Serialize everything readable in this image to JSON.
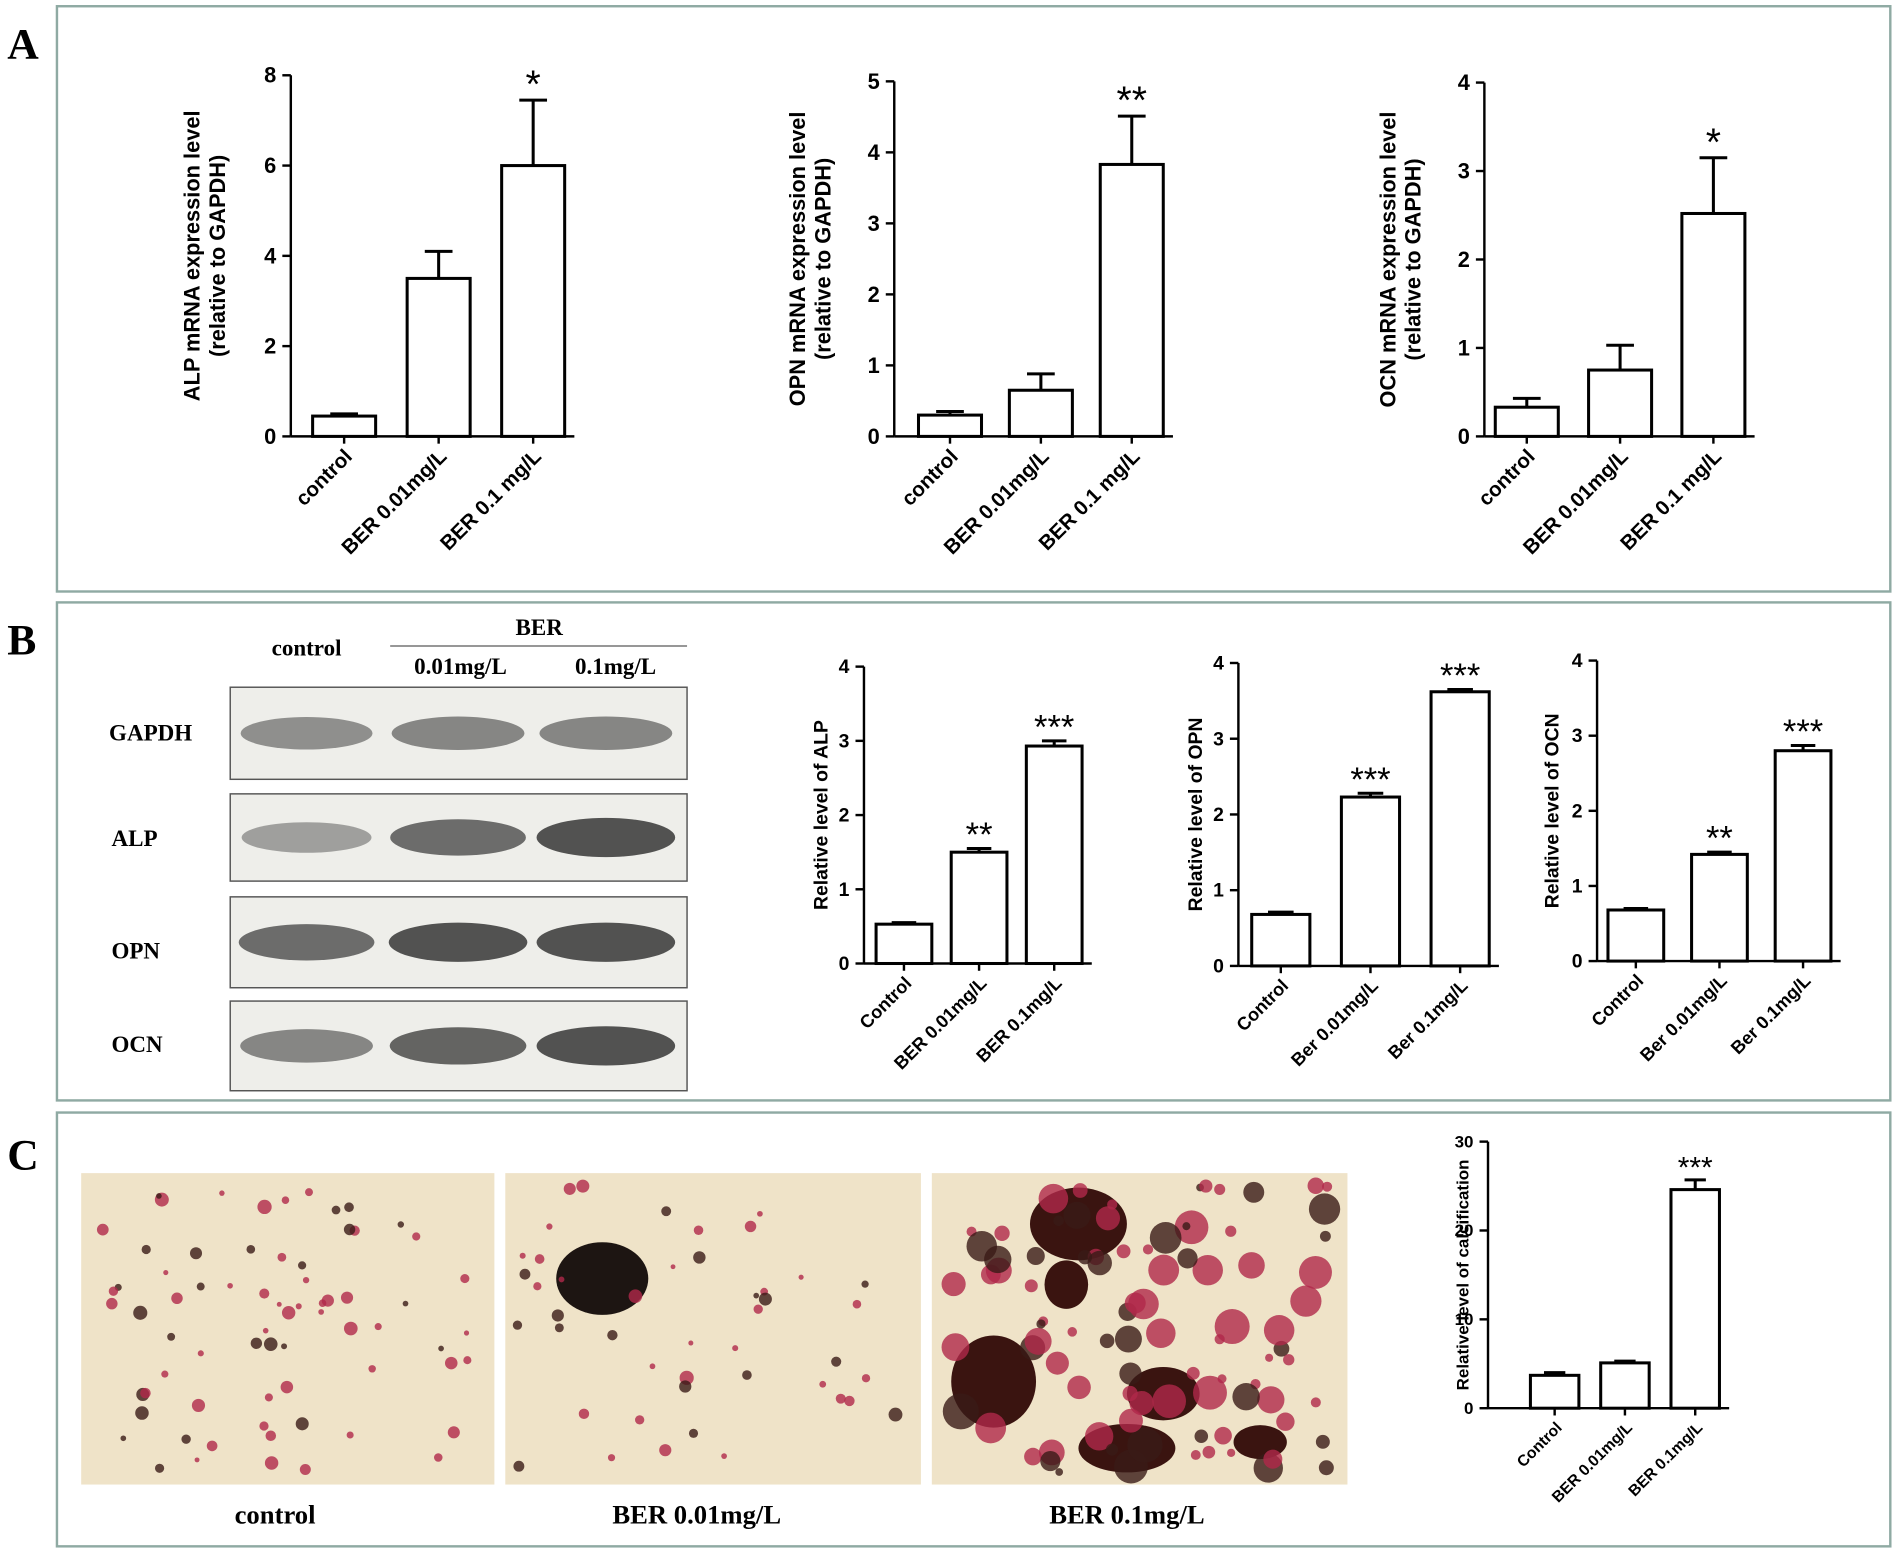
{
  "panel_labels": [
    "A",
    "B",
    "C"
  ],
  "blot": {
    "control": "control",
    "group": "BER",
    "doses": [
      "0.01mg/L",
      "0.1mg/L"
    ],
    "rows": [
      "GAPDH",
      "ALP",
      "OPN",
      "OCN"
    ]
  },
  "staining": {
    "captions": [
      "control",
      "BER 0.01mg/L",
      "BER 0.1mg/L"
    ]
  },
  "chart_data": [
    {
      "type": "bar",
      "ylabel": [
        "ALP mRNA expression level",
        "(relative to GAPDH)"
      ],
      "categories": [
        "control",
        "BER 0.01mg/L",
        "BER 0.1 mg/L"
      ],
      "values": [
        0.45,
        3.5,
        6.0
      ],
      "errors": [
        0.05,
        0.6,
        1.45
      ],
      "significance": [
        null,
        null,
        "*"
      ],
      "color": "#ffffff",
      "ylim": [
        0,
        8
      ],
      "yticks": [
        0,
        2,
        4,
        6,
        8
      ]
    },
    {
      "type": "bar",
      "ylabel": [
        "OPN mRNA expression level",
        "(relative to GAPDH)"
      ],
      "categories": [
        "control",
        "BER 0.01mg/L",
        "BER 0.1 mg/L"
      ],
      "values": [
        0.3,
        0.65,
        3.83
      ],
      "errors": [
        0.05,
        0.23,
        0.68
      ],
      "significance": [
        null,
        null,
        "**"
      ],
      "color": "#ffffff",
      "ylim": [
        0,
        5
      ],
      "yticks": [
        0,
        1,
        2,
        3,
        4,
        5
      ]
    },
    {
      "type": "bar",
      "ylabel": [
        "OCN mRNA expression level",
        "(relative to GAPDH)"
      ],
      "categories": [
        "control",
        "BER 0.01mg/L",
        "BER 0.1 mg/L"
      ],
      "values": [
        0.33,
        0.75,
        2.52
      ],
      "errors": [
        0.1,
        0.28,
        0.63
      ],
      "significance": [
        null,
        null,
        "*"
      ],
      "color": "#ffffff",
      "ylim": [
        0,
        4
      ],
      "yticks": [
        0,
        1,
        2,
        3,
        4
      ]
    },
    {
      "type": "bar",
      "ylabel": [
        "Relative level of ALP"
      ],
      "categories": [
        "Control",
        "BER 0.01mg/L",
        "BER 0.1mg/L"
      ],
      "values": [
        0.53,
        1.5,
        2.93
      ],
      "errors": [
        0.02,
        0.05,
        0.07
      ],
      "significance": [
        null,
        "**",
        "***"
      ],
      "color": "#ffffff",
      "ylim": [
        0,
        4
      ],
      "yticks": [
        0,
        1,
        2,
        3,
        4
      ]
    },
    {
      "type": "bar",
      "ylabel": [
        "Relative level of OPN"
      ],
      "categories": [
        "Control",
        "Ber 0.01mg/L",
        "Ber 0.1mg/L"
      ],
      "values": [
        0.68,
        2.23,
        3.62
      ],
      "errors": [
        0.03,
        0.05,
        0.03
      ],
      "significance": [
        null,
        "***",
        "***"
      ],
      "color": "#ffffff",
      "ylim": [
        0,
        4
      ],
      "yticks": [
        0,
        1,
        2,
        3,
        4
      ]
    },
    {
      "type": "bar",
      "ylabel": [
        "Relative level of OCN"
      ],
      "categories": [
        "Control",
        "Ber 0.01mg/L",
        "Ber 0.1mg/L"
      ],
      "values": [
        0.68,
        1.42,
        2.8
      ],
      "errors": [
        0.02,
        0.03,
        0.07
      ],
      "significance": [
        null,
        "**",
        "***"
      ],
      "color": "#ffffff",
      "ylim": [
        0,
        4
      ],
      "yticks": [
        0,
        1,
        2,
        3,
        4
      ]
    },
    {
      "type": "bar",
      "ylabel": [
        "Relative level of calcification"
      ],
      "categories": [
        "Control",
        "BER 0.01mg/L",
        "BER 0.1mg/L"
      ],
      "values": [
        3.7,
        5.1,
        24.6
      ],
      "errors": [
        0.3,
        0.2,
        1.1
      ],
      "significance": [
        null,
        null,
        "***"
      ],
      "color": "#ffffff",
      "ylim": [
        0,
        30
      ],
      "yticks": [
        0,
        10,
        20,
        30
      ]
    }
  ]
}
